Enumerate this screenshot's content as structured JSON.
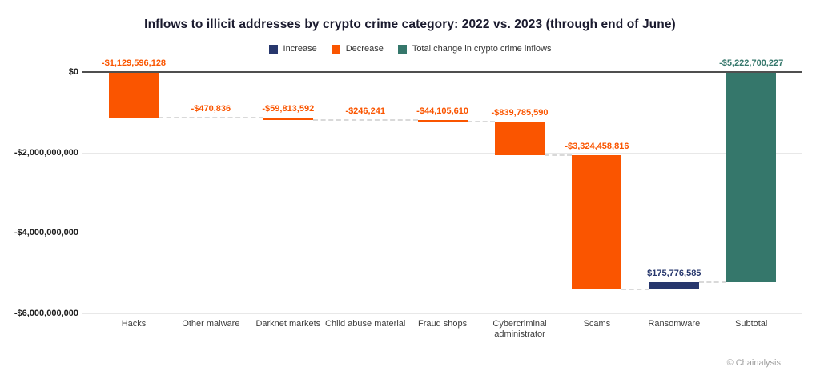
{
  "title": "Inflows to illicit addresses by crypto crime category: 2022 vs. 2023 (through end of June)",
  "legend": [
    {
      "label": "Increase",
      "color": "#27376d",
      "icon": "increase-swatch"
    },
    {
      "label": "Decrease",
      "color": "#fa5500",
      "icon": "decrease-swatch"
    },
    {
      "label": "Total change in crypto crime inflows",
      "color": "#35776b",
      "icon": "total-swatch"
    }
  ],
  "watermark": "© Chainalysis",
  "chart_data": {
    "type": "bar",
    "subtype": "waterfall",
    "title": "Inflows to illicit addresses by crypto crime category: 2022 vs. 2023 (through end of June)",
    "categories": [
      "Hacks",
      "Other malware",
      "Darknet markets",
      "Child abuse material",
      "Fraud shops",
      "Cybercriminal administrator",
      "Scams",
      "Ransomware",
      "Subtotal"
    ],
    "values": [
      -1129596128,
      -470836,
      -59813592,
      -246241,
      -44105610,
      -839785590,
      -3324458816,
      175776585,
      -5222700227
    ],
    "kinds": [
      "decrease",
      "decrease",
      "decrease",
      "decrease",
      "decrease",
      "decrease",
      "decrease",
      "increase",
      "total"
    ],
    "data_labels": [
      "-$1,129,596,128",
      "-$470,836",
      "-$59,813,592",
      "-$246,241",
      "-$44,105,610",
      "-$839,785,590",
      "-$3,324,458,816",
      "$175,776,585",
      "-$5,222,700,227"
    ],
    "y_ticks": [
      {
        "label": "$0",
        "value": 0
      },
      {
        "label": "-$2,000,000,000",
        "value": -2000000000
      },
      {
        "label": "-$4,000,000,000",
        "value": -4000000000
      },
      {
        "label": "-$6,000,000,000",
        "value": -6000000000
      }
    ],
    "ylim": [
      -6000000000,
      0
    ],
    "grid": "horizontal",
    "legend_position": "top-center",
    "colors": {
      "increase": "#27376d",
      "decrease": "#fa5500",
      "total": "#35776b",
      "gridline": "#e8e8e8",
      "zero_line": "#4f4f4f",
      "connector": "#d9d9d9"
    }
  }
}
